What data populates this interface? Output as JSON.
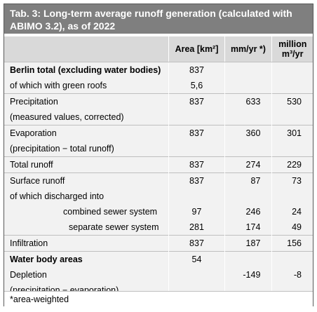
{
  "title": "Tab. 3: Long-term average runoff generation (calculated with ABIMO 3.2), as of 2022",
  "header": {
    "area": "Area [km²]",
    "mm": "mm/yr *)",
    "million": "million m³/yr"
  },
  "rows": [
    {
      "label": "Berlin total (excluding water bodies)",
      "area": "837",
      "mm": "",
      "mill": ""
    },
    {
      "label": "of which with green roofs",
      "area": "5,6",
      "mm": "",
      "mill": ""
    },
    {
      "label": "Precipitation",
      "area": "837",
      "mm": "633",
      "mill": "530"
    },
    {
      "label": "(measured values, corrected)",
      "area": "",
      "mm": "",
      "mill": ""
    },
    {
      "label": "Evaporation",
      "area": "837",
      "mm": "360",
      "mill": "301"
    },
    {
      "label": "(precipitation − total runoff)",
      "area": "",
      "mm": "",
      "mill": ""
    },
    {
      "label": "Total runoff",
      "area": "837",
      "mm": "274",
      "mill": "229"
    },
    {
      "label": "Surface runoff",
      "area": "837",
      "mm": "87",
      "mill": "73"
    },
    {
      "label": "of which discharged into",
      "area": "",
      "mm": "",
      "mill": ""
    },
    {
      "label": "combined sewer system",
      "area": "97",
      "mm": "246",
      "mill": "24"
    },
    {
      "label": "separate sewer system",
      "area": "281",
      "mm": "174",
      "mill": "49"
    },
    {
      "label": "Infiltration",
      "area": "837",
      "mm": "187",
      "mill": "156"
    },
    {
      "label": "Water body areas",
      "area": "54",
      "mm": "",
      "mill": ""
    },
    {
      "label": "Depletion",
      "area": "",
      "mm": "-149",
      "mill": "-8"
    },
    {
      "label": "(precipitation − evaporation)",
      "area": "",
      "mm": "",
      "mill": ""
    }
  ],
  "footnote": "*area-weighted"
}
